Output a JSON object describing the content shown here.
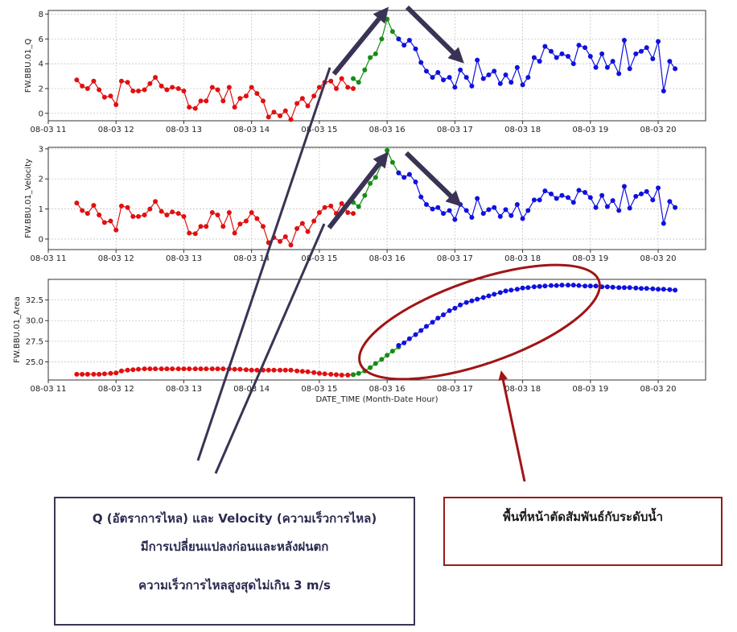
{
  "chart_data": [
    {
      "type": "line",
      "ylabel": "FW.BBU.01_Q",
      "xlabel": "",
      "ylim": [
        -0.6,
        8.3
      ],
      "yticks": [
        0,
        2,
        4,
        6,
        8
      ],
      "xlim": [
        11.0,
        20.7
      ],
      "xticks": [
        11,
        12,
        13,
        14,
        15,
        16,
        17,
        18,
        19,
        20
      ],
      "xtick_labels": [
        "08-03 11",
        "08-03 12",
        "08-03 13",
        "08-03 14",
        "08-03 15",
        "08-03 16",
        "08-03 17",
        "08-03 18",
        "08-03 19",
        "08-03 20"
      ],
      "grid": true,
      "series": [
        {
          "color": "#e01010",
          "x": [
            11.42,
            11.5,
            11.58,
            11.67,
            11.75,
            11.83,
            11.92,
            12.0,
            12.08,
            12.17,
            12.25,
            12.33,
            12.42,
            12.5,
            12.58,
            12.67,
            12.75,
            12.83,
            12.92,
            13.0,
            13.08,
            13.17,
            13.25,
            13.33,
            13.42,
            13.5,
            13.58,
            13.67,
            13.75,
            13.83,
            13.92,
            14.0,
            14.08,
            14.17,
            14.25,
            14.33,
            14.42,
            14.5,
            14.58,
            14.67,
            14.75,
            14.83,
            14.92,
            15.0,
            15.08,
            15.17,
            15.25,
            15.33,
            15.42,
            15.5
          ],
          "y": [
            2.7,
            2.2,
            2.0,
            2.6,
            1.9,
            1.3,
            1.4,
            0.7,
            2.6,
            2.5,
            1.8,
            1.8,
            1.9,
            2.4,
            2.9,
            2.2,
            1.9,
            2.1,
            2.0,
            1.8,
            0.5,
            0.4,
            1.0,
            1.0,
            2.1,
            1.9,
            1.0,
            2.1,
            0.5,
            1.2,
            1.4,
            2.1,
            1.6,
            1.0,
            -0.3,
            0.1,
            -0.2,
            0.2,
            -0.5,
            0.8,
            1.2,
            0.6,
            1.4,
            2.1,
            2.5,
            2.6,
            2.0,
            2.8,
            2.1,
            2.0
          ]
        },
        {
          "color": "#158c15",
          "x": [
            15.5,
            15.58,
            15.67,
            15.75,
            15.83,
            15.92,
            16.0,
            16.08,
            16.17
          ],
          "y": [
            2.8,
            2.5,
            3.5,
            4.5,
            4.8,
            6.0,
            7.6,
            6.6,
            6.0
          ]
        },
        {
          "color": "#1010e0",
          "x": [
            16.17,
            16.25,
            16.33,
            16.42,
            16.5,
            16.58,
            16.67,
            16.75,
            16.83,
            16.92,
            17.0,
            17.08,
            17.17,
            17.25,
            17.33,
            17.42,
            17.5,
            17.58,
            17.67,
            17.75,
            17.83,
            17.92,
            18.0,
            18.08,
            18.17,
            18.25,
            18.33,
            18.42,
            18.5,
            18.58,
            18.67,
            18.75,
            18.83,
            18.92,
            19.0,
            19.08,
            19.17,
            19.25,
            19.33,
            19.42,
            19.5,
            19.58,
            19.67,
            19.75,
            19.83,
            19.92,
            20.0,
            20.08,
            20.17,
            20.25
          ],
          "y": [
            6.0,
            5.5,
            5.9,
            5.2,
            4.1,
            3.4,
            2.9,
            3.3,
            2.7,
            2.9,
            2.1,
            3.5,
            2.9,
            2.2,
            4.3,
            2.8,
            3.1,
            3.4,
            2.4,
            3.1,
            2.5,
            3.7,
            2.3,
            2.9,
            4.5,
            4.2,
            5.4,
            5.0,
            4.5,
            4.8,
            4.6,
            4.0,
            5.5,
            5.3,
            4.6,
            3.7,
            4.8,
            3.7,
            4.2,
            3.2,
            5.9,
            3.6,
            4.8,
            5.0,
            5.3,
            4.4,
            5.8,
            1.8,
            4.2,
            3.6
          ]
        }
      ]
    },
    {
      "type": "line",
      "ylabel": "FW.BBU.01_Velocity",
      "xlabel": "",
      "ylim": [
        -0.35,
        3.05
      ],
      "yticks": [
        0,
        1,
        2,
        3
      ],
      "xlim": [
        11.0,
        20.7
      ],
      "xticks": [
        11,
        12,
        13,
        14,
        15,
        16,
        17,
        18,
        19,
        20
      ],
      "xtick_labels": [
        "08-03 11",
        "08-03 12",
        "08-03 13",
        "08-03 14",
        "08-03 15",
        "08-03 16",
        "08-03 17",
        "08-03 18",
        "08-03 19",
        "08-03 20"
      ],
      "grid": true,
      "series": [
        {
          "color": "#e01010",
          "x": [
            11.42,
            11.5,
            11.58,
            11.67,
            11.75,
            11.83,
            11.92,
            12.0,
            12.08,
            12.17,
            12.25,
            12.33,
            12.42,
            12.5,
            12.58,
            12.67,
            12.75,
            12.83,
            12.92,
            13.0,
            13.08,
            13.17,
            13.25,
            13.33,
            13.42,
            13.5,
            13.58,
            13.67,
            13.75,
            13.83,
            13.92,
            14.0,
            14.08,
            14.17,
            14.25,
            14.33,
            14.42,
            14.5,
            14.58,
            14.67,
            14.75,
            14.83,
            14.92,
            15.0,
            15.08,
            15.17,
            15.25,
            15.33,
            15.42,
            15.5
          ],
          "y": [
            1.2,
            0.95,
            0.85,
            1.12,
            0.8,
            0.55,
            0.6,
            0.3,
            1.1,
            1.05,
            0.75,
            0.75,
            0.8,
            1.0,
            1.25,
            0.92,
            0.8,
            0.9,
            0.85,
            0.75,
            0.2,
            0.18,
            0.42,
            0.42,
            0.88,
            0.8,
            0.42,
            0.88,
            0.2,
            0.5,
            0.6,
            0.88,
            0.68,
            0.42,
            -0.12,
            0.05,
            -0.08,
            0.08,
            -0.2,
            0.35,
            0.52,
            0.25,
            0.6,
            0.88,
            1.05,
            1.1,
            0.85,
            1.18,
            0.88,
            0.85
          ]
        },
        {
          "color": "#158c15",
          "x": [
            15.5,
            15.58,
            15.67,
            15.75,
            15.83,
            15.92,
            16.0,
            16.08,
            16.17
          ],
          "y": [
            1.22,
            1.08,
            1.45,
            1.85,
            2.05,
            2.5,
            2.95,
            2.55,
            2.2
          ]
        },
        {
          "color": "#1010e0",
          "x": [
            16.17,
            16.25,
            16.33,
            16.42,
            16.5,
            16.58,
            16.67,
            16.75,
            16.83,
            16.92,
            17.0,
            17.08,
            17.17,
            17.25,
            17.33,
            17.42,
            17.5,
            17.58,
            17.67,
            17.75,
            17.83,
            17.92,
            18.0,
            18.08,
            18.17,
            18.25,
            18.33,
            18.42,
            18.5,
            18.58,
            18.67,
            18.75,
            18.83,
            18.92,
            19.0,
            19.08,
            19.17,
            19.25,
            19.33,
            19.42,
            19.5,
            19.58,
            19.67,
            19.75,
            19.83,
            19.92,
            20.0,
            20.08,
            20.17,
            20.25
          ],
          "y": [
            2.2,
            2.05,
            2.15,
            1.9,
            1.4,
            1.15,
            1.0,
            1.05,
            0.85,
            0.95,
            0.65,
            1.15,
            0.95,
            0.72,
            1.35,
            0.85,
            0.98,
            1.05,
            0.75,
            0.98,
            0.78,
            1.15,
            0.68,
            0.95,
            1.3,
            1.3,
            1.6,
            1.5,
            1.35,
            1.45,
            1.38,
            1.22,
            1.62,
            1.55,
            1.38,
            1.05,
            1.45,
            1.08,
            1.28,
            0.95,
            1.75,
            1.03,
            1.42,
            1.5,
            1.58,
            1.3,
            1.7,
            0.52,
            1.25,
            1.05
          ]
        }
      ]
    },
    {
      "type": "line",
      "ylabel": "FW.BBU.01_Area",
      "xlabel": "DATE_TIME (Month-Date Hour)",
      "ylim": [
        22.8,
        35.0
      ],
      "yticks": [
        25.0,
        27.5,
        30.0,
        32.5
      ],
      "ytick_labels": [
        "25.0",
        "27.5",
        "30.0",
        "32.5"
      ],
      "xlim": [
        11.0,
        20.7
      ],
      "xticks": [
        11,
        12,
        13,
        14,
        15,
        16,
        17,
        18,
        19,
        20
      ],
      "xtick_labels": [
        "08-03 11",
        "08-03 12",
        "08-03 13",
        "08-03 14",
        "08-03 15",
        "08-03 16",
        "08-03 17",
        "08-03 18",
        "08-03 19",
        "08-03 20"
      ],
      "grid": true,
      "series": [
        {
          "color": "#e01010",
          "x": [
            11.42,
            11.5,
            11.58,
            11.67,
            11.75,
            11.83,
            11.92,
            12.0,
            12.08,
            12.17,
            12.25,
            12.33,
            12.42,
            12.5,
            12.58,
            12.67,
            12.75,
            12.83,
            12.92,
            13.0,
            13.08,
            13.17,
            13.25,
            13.33,
            13.42,
            13.5,
            13.58,
            13.67,
            13.75,
            13.83,
            13.92,
            14.0,
            14.08,
            14.17,
            14.25,
            14.33,
            14.42,
            14.5,
            14.58,
            14.67,
            14.75,
            14.83,
            14.92,
            15.0,
            15.08,
            15.17,
            15.25,
            15.33,
            15.42,
            15.5
          ],
          "y": [
            23.5,
            23.5,
            23.5,
            23.5,
            23.5,
            23.55,
            23.6,
            23.65,
            23.9,
            24.0,
            24.05,
            24.1,
            24.15,
            24.15,
            24.15,
            24.15,
            24.15,
            24.15,
            24.15,
            24.15,
            24.15,
            24.15,
            24.15,
            24.15,
            24.15,
            24.15,
            24.15,
            24.15,
            24.1,
            24.1,
            24.05,
            24.0,
            24.0,
            24.0,
            24.0,
            24.0,
            24.0,
            24.0,
            24.0,
            23.9,
            23.85,
            23.8,
            23.7,
            23.6,
            23.55,
            23.5,
            23.45,
            23.4,
            23.4,
            23.45
          ]
        },
        {
          "color": "#158c15",
          "x": [
            15.5,
            15.58,
            15.67,
            15.75,
            15.83,
            15.92,
            16.0,
            16.08,
            16.17
          ],
          "y": [
            23.45,
            23.6,
            23.9,
            24.3,
            24.8,
            25.3,
            25.8,
            26.3,
            26.8
          ]
        },
        {
          "color": "#1010e0",
          "x": [
            16.17,
            16.25,
            16.33,
            16.42,
            16.5,
            16.58,
            16.67,
            16.75,
            16.83,
            16.92,
            17.0,
            17.08,
            17.17,
            17.25,
            17.33,
            17.42,
            17.5,
            17.58,
            17.67,
            17.75,
            17.83,
            17.92,
            18.0,
            18.08,
            18.17,
            18.25,
            18.33,
            18.42,
            18.5,
            18.58,
            18.67,
            18.75,
            18.83,
            18.92,
            19.0,
            19.08,
            19.17,
            19.25,
            19.33,
            19.42,
            19.5,
            19.58,
            19.67,
            19.75,
            19.83,
            19.92,
            20.0,
            20.08,
            20.17,
            20.25
          ],
          "y": [
            27.0,
            27.3,
            27.8,
            28.3,
            28.8,
            29.3,
            29.8,
            30.3,
            30.7,
            31.2,
            31.5,
            31.9,
            32.2,
            32.4,
            32.6,
            32.8,
            33.0,
            33.2,
            33.4,
            33.6,
            33.7,
            33.8,
            33.95,
            34.0,
            34.1,
            34.15,
            34.2,
            34.25,
            34.25,
            34.3,
            34.3,
            34.3,
            34.25,
            34.2,
            34.2,
            34.2,
            34.1,
            34.1,
            34.05,
            34.0,
            34.0,
            34.0,
            33.95,
            33.9,
            33.9,
            33.85,
            33.8,
            33.8,
            33.75,
            33.7
          ]
        }
      ]
    }
  ],
  "notes": {
    "left_line1": "Q (อัตราการไหล) และ Velocity (ความเร็วการไหล)",
    "left_line2": "มีการเปลี่ยนแปลงก่อนและหลังฝนตก",
    "left_line3": "ความเร็วการไหลสูงสุดไม่เกิน 3 m/s",
    "right_line1": "พื้นที่หน้าตัดสัมพันธ์กับระดับน้ำ"
  },
  "colors": {
    "before_rain": "#e01010",
    "during_rain": "#158c15",
    "after_rain": "#1010e0",
    "arrow": "#3b3355",
    "highlight": "#a01515"
  }
}
